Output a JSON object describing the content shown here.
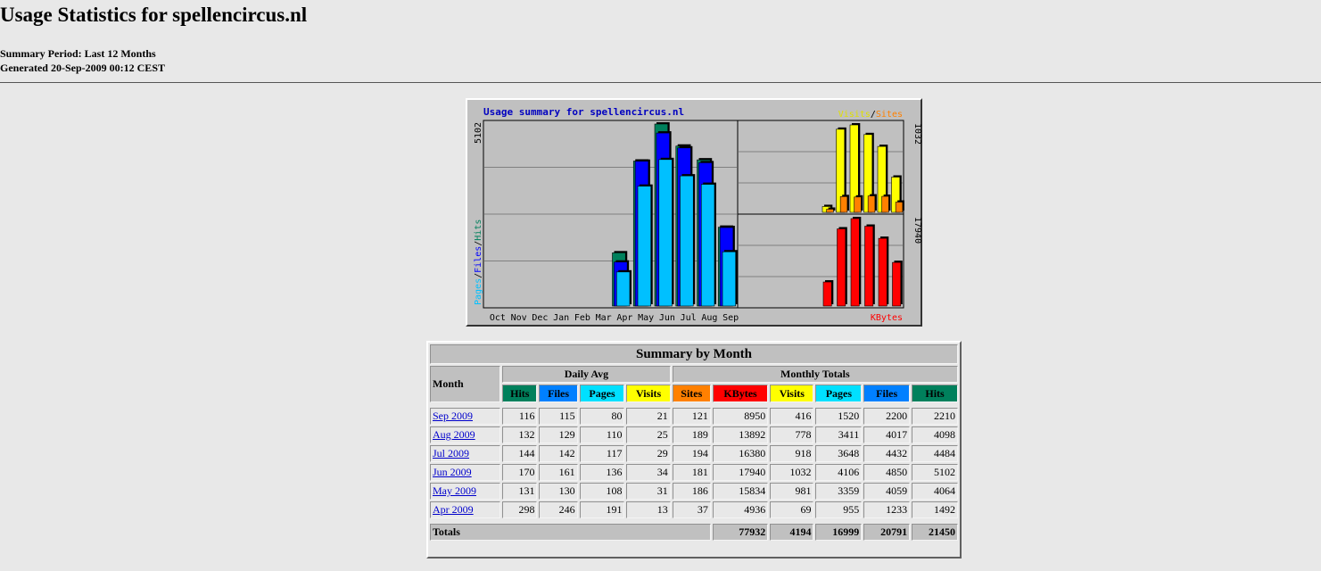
{
  "page": {
    "title": "Usage Statistics for spellencircus.nl",
    "summary_period": "Summary Period: Last 12 Months",
    "generated": "Generated 20-Sep-2009 00:12 CEST"
  },
  "graph": {
    "title": "Usage summary for spellencircus.nl",
    "left_scale_label": "5102",
    "left_axis": {
      "pages": "Pages",
      "files": "Files",
      "hits": "Hits",
      "sep": "/"
    },
    "top_right_legend": {
      "visits": "Visits",
      "sep": "/",
      "sites": "Sites"
    },
    "top_right_scale_label": "1032",
    "bottom_right_scale_label": "17940",
    "bottom_right_legend": "KBytes",
    "months": [
      "Oct",
      "Nov",
      "Dec",
      "Jan",
      "Feb",
      "Mar",
      "Apr",
      "May",
      "Jun",
      "Jul",
      "Aug",
      "Sep"
    ],
    "colors": {
      "hits": "#00805c",
      "files": "#0000ff",
      "pages": "#00c0ff",
      "visits": "#ffff00",
      "sites": "#ff8000",
      "kbytes": "#ff0000"
    }
  },
  "chart_data": {
    "type": "bar",
    "title": "Usage summary for spellencircus.nl",
    "categories": [
      "Oct",
      "Nov",
      "Dec",
      "Jan",
      "Feb",
      "Mar",
      "Apr",
      "May",
      "Jun",
      "Jul",
      "Aug",
      "Sep"
    ],
    "series": [
      {
        "name": "Hits",
        "values": [
          0,
          0,
          0,
          0,
          0,
          0,
          1492,
          4064,
          5102,
          4484,
          4098,
          2210
        ]
      },
      {
        "name": "Files",
        "values": [
          0,
          0,
          0,
          0,
          0,
          0,
          1233,
          4059,
          4850,
          4432,
          4017,
          2200
        ]
      },
      {
        "name": "Pages",
        "values": [
          0,
          0,
          0,
          0,
          0,
          0,
          955,
          3359,
          4106,
          3648,
          3411,
          1520
        ]
      },
      {
        "name": "Visits",
        "values": [
          0,
          0,
          0,
          0,
          0,
          0,
          69,
          981,
          1032,
          918,
          778,
          416
        ]
      },
      {
        "name": "Sites",
        "values": [
          0,
          0,
          0,
          0,
          0,
          0,
          37,
          186,
          181,
          194,
          189,
          121
        ]
      },
      {
        "name": "KBytes",
        "values": [
          0,
          0,
          0,
          0,
          0,
          0,
          4936,
          15834,
          17940,
          16380,
          13892,
          8950
        ]
      }
    ],
    "ylim_main": [
      0,
      5102
    ],
    "ylim_visits": [
      0,
      1032
    ],
    "ylim_kbytes": [
      0,
      17940
    ]
  },
  "summary": {
    "caption": "Summary by Month",
    "month_header": "Month",
    "daily_avg_header": "Daily Avg",
    "monthly_totals_header": "Monthly Totals",
    "columns": [
      {
        "label": "Hits",
        "color": "#00805c",
        "text_color": "#000000"
      },
      {
        "label": "Files",
        "color": "#0080ff",
        "text_color": "#000000"
      },
      {
        "label": "Pages",
        "color": "#00e0ff",
        "text_color": "#000000"
      },
      {
        "label": "Visits",
        "color": "#ffff00",
        "text_color": "#000000"
      },
      {
        "label": "Sites",
        "color": "#ff8000",
        "text_color": "#000000"
      },
      {
        "label": "KBytes",
        "color": "#ff0000",
        "text_color": "#000000"
      },
      {
        "label": "Visits",
        "color": "#ffff00",
        "text_color": "#000000"
      },
      {
        "label": "Pages",
        "color": "#00e0ff",
        "text_color": "#000000"
      },
      {
        "label": "Files",
        "color": "#0080ff",
        "text_color": "#000000"
      },
      {
        "label": "Hits",
        "color": "#00805c",
        "text_color": "#000000"
      }
    ],
    "rows": [
      {
        "month": "Sep 2009",
        "values": [
          "116",
          "115",
          "80",
          "21",
          "121",
          "8950",
          "416",
          "1520",
          "2200",
          "2210"
        ]
      },
      {
        "month": "Aug 2009",
        "values": [
          "132",
          "129",
          "110",
          "25",
          "189",
          "13892",
          "778",
          "3411",
          "4017",
          "4098"
        ]
      },
      {
        "month": "Jul 2009",
        "values": [
          "144",
          "142",
          "117",
          "29",
          "194",
          "16380",
          "918",
          "3648",
          "4432",
          "4484"
        ]
      },
      {
        "month": "Jun 2009",
        "values": [
          "170",
          "161",
          "136",
          "34",
          "181",
          "17940",
          "1032",
          "4106",
          "4850",
          "5102"
        ]
      },
      {
        "month": "May 2009",
        "values": [
          "131",
          "130",
          "108",
          "31",
          "186",
          "15834",
          "981",
          "3359",
          "4059",
          "4064"
        ]
      },
      {
        "month": "Apr 2009",
        "values": [
          "298",
          "246",
          "191",
          "13",
          "37",
          "4936",
          "69",
          "955",
          "1233",
          "1492"
        ]
      }
    ],
    "totals": {
      "label": "Totals",
      "values": [
        "77932",
        "4194",
        "16999",
        "20791",
        "21450"
      ]
    }
  }
}
